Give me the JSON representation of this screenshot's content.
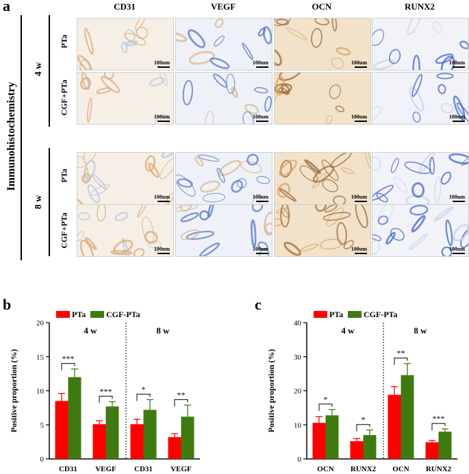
{
  "panel_a": {
    "letter": "a",
    "side_label": "Immunohistochemistry",
    "columns": [
      "CD31",
      "VEGF",
      "OCN",
      "RUNX2"
    ],
    "timepoints": [
      {
        "label": "4 w",
        "rows": [
          "PTa",
          "CGF+PTa"
        ]
      },
      {
        "label": "8 w",
        "rows": [
          "PTa",
          "CGF+PTa"
        ]
      }
    ],
    "scale_label": "100um"
  },
  "panel_b": {
    "letter": "b",
    "legend": [
      "PTa",
      "CGF-PTa"
    ],
    "colors": {
      "pta": "#ff0000",
      "cgf": "#3f7a10"
    }
  },
  "panel_c": {
    "letter": "c",
    "legend": [
      "PTa",
      "CGF-PTa"
    ]
  },
  "chart_data": [
    {
      "id": "b",
      "type": "bar",
      "ylabel": "Positive proportion (%)",
      "ylim": [
        0,
        20
      ],
      "yticks": [
        0,
        5,
        10,
        15,
        20
      ],
      "groups": [
        "4 w",
        "8 w"
      ],
      "categories": [
        "CD31",
        "VEGF",
        "CD31",
        "VEGF"
      ],
      "series": [
        {
          "name": "PTa",
          "values": [
            8.5,
            5.1,
            5.1,
            3.2
          ],
          "errors": [
            1.1,
            0.5,
            0.7,
            0.5
          ]
        },
        {
          "name": "CGF-PTa",
          "values": [
            12.0,
            7.7,
            7.2,
            6.2
          ],
          "errors": [
            1.2,
            0.7,
            1.5,
            1.7
          ]
        }
      ],
      "significance": [
        "***",
        "***",
        "*",
        "**"
      ]
    },
    {
      "id": "c",
      "type": "bar",
      "ylabel": "Positive proportion (%)",
      "ylim": [
        0,
        40
      ],
      "yticks": [
        0,
        10,
        20,
        30,
        40
      ],
      "groups": [
        "4 w",
        "8 w"
      ],
      "categories": [
        "OCN",
        "RUNX2",
        "OCN",
        "RUNX2"
      ],
      "series": [
        {
          "name": "PTa",
          "values": [
            10.6,
            5.2,
            18.8,
            4.9
          ],
          "errors": [
            1.8,
            0.8,
            2.4,
            0.5
          ]
        },
        {
          "name": "CGF-PTa",
          "values": [
            12.8,
            7.0,
            24.6,
            8.0
          ],
          "errors": [
            1.7,
            1.5,
            3.4,
            0.8
          ]
        }
      ],
      "significance": [
        "*",
        "*",
        "**",
        "***"
      ]
    }
  ]
}
